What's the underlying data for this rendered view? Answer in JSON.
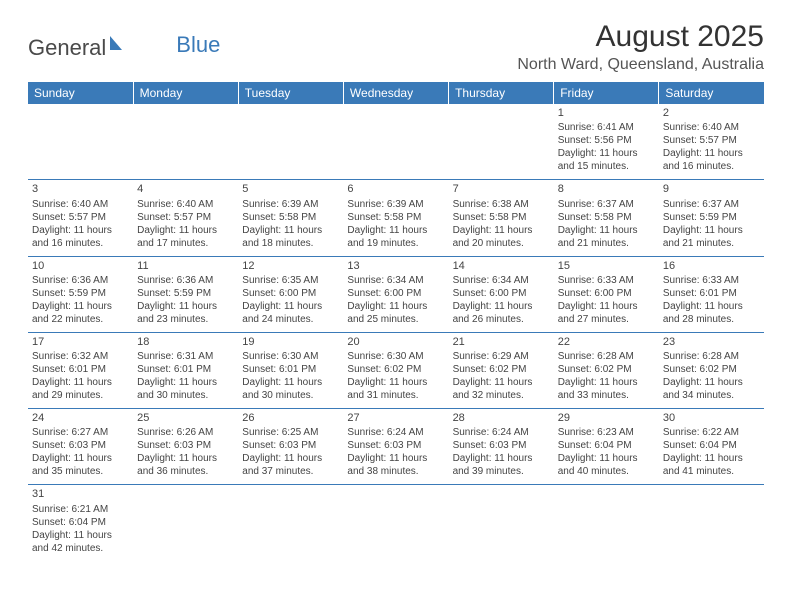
{
  "logo": {
    "text1": "General",
    "text2": "Blue"
  },
  "title": "August 2025",
  "location": "North Ward, Queensland, Australia",
  "colors": {
    "header_bg": "#3a7ab8",
    "header_text": "#ffffff",
    "border": "#3a7ab8",
    "text": "#444444",
    "background": "#ffffff"
  },
  "day_headers": [
    "Sunday",
    "Monday",
    "Tuesday",
    "Wednesday",
    "Thursday",
    "Friday",
    "Saturday"
  ],
  "weeks": [
    [
      null,
      null,
      null,
      null,
      null,
      {
        "num": "1",
        "sunrise": "Sunrise: 6:41 AM",
        "sunset": "Sunset: 5:56 PM",
        "daylight": "Daylight: 11 hours and 15 minutes."
      },
      {
        "num": "2",
        "sunrise": "Sunrise: 6:40 AM",
        "sunset": "Sunset: 5:57 PM",
        "daylight": "Daylight: 11 hours and 16 minutes."
      }
    ],
    [
      {
        "num": "3",
        "sunrise": "Sunrise: 6:40 AM",
        "sunset": "Sunset: 5:57 PM",
        "daylight": "Daylight: 11 hours and 16 minutes."
      },
      {
        "num": "4",
        "sunrise": "Sunrise: 6:40 AM",
        "sunset": "Sunset: 5:57 PM",
        "daylight": "Daylight: 11 hours and 17 minutes."
      },
      {
        "num": "5",
        "sunrise": "Sunrise: 6:39 AM",
        "sunset": "Sunset: 5:58 PM",
        "daylight": "Daylight: 11 hours and 18 minutes."
      },
      {
        "num": "6",
        "sunrise": "Sunrise: 6:39 AM",
        "sunset": "Sunset: 5:58 PM",
        "daylight": "Daylight: 11 hours and 19 minutes."
      },
      {
        "num": "7",
        "sunrise": "Sunrise: 6:38 AM",
        "sunset": "Sunset: 5:58 PM",
        "daylight": "Daylight: 11 hours and 20 minutes."
      },
      {
        "num": "8",
        "sunrise": "Sunrise: 6:37 AM",
        "sunset": "Sunset: 5:58 PM",
        "daylight": "Daylight: 11 hours and 21 minutes."
      },
      {
        "num": "9",
        "sunrise": "Sunrise: 6:37 AM",
        "sunset": "Sunset: 5:59 PM",
        "daylight": "Daylight: 11 hours and 21 minutes."
      }
    ],
    [
      {
        "num": "10",
        "sunrise": "Sunrise: 6:36 AM",
        "sunset": "Sunset: 5:59 PM",
        "daylight": "Daylight: 11 hours and 22 minutes."
      },
      {
        "num": "11",
        "sunrise": "Sunrise: 6:36 AM",
        "sunset": "Sunset: 5:59 PM",
        "daylight": "Daylight: 11 hours and 23 minutes."
      },
      {
        "num": "12",
        "sunrise": "Sunrise: 6:35 AM",
        "sunset": "Sunset: 6:00 PM",
        "daylight": "Daylight: 11 hours and 24 minutes."
      },
      {
        "num": "13",
        "sunrise": "Sunrise: 6:34 AM",
        "sunset": "Sunset: 6:00 PM",
        "daylight": "Daylight: 11 hours and 25 minutes."
      },
      {
        "num": "14",
        "sunrise": "Sunrise: 6:34 AM",
        "sunset": "Sunset: 6:00 PM",
        "daylight": "Daylight: 11 hours and 26 minutes."
      },
      {
        "num": "15",
        "sunrise": "Sunrise: 6:33 AM",
        "sunset": "Sunset: 6:00 PM",
        "daylight": "Daylight: 11 hours and 27 minutes."
      },
      {
        "num": "16",
        "sunrise": "Sunrise: 6:33 AM",
        "sunset": "Sunset: 6:01 PM",
        "daylight": "Daylight: 11 hours and 28 minutes."
      }
    ],
    [
      {
        "num": "17",
        "sunrise": "Sunrise: 6:32 AM",
        "sunset": "Sunset: 6:01 PM",
        "daylight": "Daylight: 11 hours and 29 minutes."
      },
      {
        "num": "18",
        "sunrise": "Sunrise: 6:31 AM",
        "sunset": "Sunset: 6:01 PM",
        "daylight": "Daylight: 11 hours and 30 minutes."
      },
      {
        "num": "19",
        "sunrise": "Sunrise: 6:30 AM",
        "sunset": "Sunset: 6:01 PM",
        "daylight": "Daylight: 11 hours and 30 minutes."
      },
      {
        "num": "20",
        "sunrise": "Sunrise: 6:30 AM",
        "sunset": "Sunset: 6:02 PM",
        "daylight": "Daylight: 11 hours and 31 minutes."
      },
      {
        "num": "21",
        "sunrise": "Sunrise: 6:29 AM",
        "sunset": "Sunset: 6:02 PM",
        "daylight": "Daylight: 11 hours and 32 minutes."
      },
      {
        "num": "22",
        "sunrise": "Sunrise: 6:28 AM",
        "sunset": "Sunset: 6:02 PM",
        "daylight": "Daylight: 11 hours and 33 minutes."
      },
      {
        "num": "23",
        "sunrise": "Sunrise: 6:28 AM",
        "sunset": "Sunset: 6:02 PM",
        "daylight": "Daylight: 11 hours and 34 minutes."
      }
    ],
    [
      {
        "num": "24",
        "sunrise": "Sunrise: 6:27 AM",
        "sunset": "Sunset: 6:03 PM",
        "daylight": "Daylight: 11 hours and 35 minutes."
      },
      {
        "num": "25",
        "sunrise": "Sunrise: 6:26 AM",
        "sunset": "Sunset: 6:03 PM",
        "daylight": "Daylight: 11 hours and 36 minutes."
      },
      {
        "num": "26",
        "sunrise": "Sunrise: 6:25 AM",
        "sunset": "Sunset: 6:03 PM",
        "daylight": "Daylight: 11 hours and 37 minutes."
      },
      {
        "num": "27",
        "sunrise": "Sunrise: 6:24 AM",
        "sunset": "Sunset: 6:03 PM",
        "daylight": "Daylight: 11 hours and 38 minutes."
      },
      {
        "num": "28",
        "sunrise": "Sunrise: 6:24 AM",
        "sunset": "Sunset: 6:03 PM",
        "daylight": "Daylight: 11 hours and 39 minutes."
      },
      {
        "num": "29",
        "sunrise": "Sunrise: 6:23 AM",
        "sunset": "Sunset: 6:04 PM",
        "daylight": "Daylight: 11 hours and 40 minutes."
      },
      {
        "num": "30",
        "sunrise": "Sunrise: 6:22 AM",
        "sunset": "Sunset: 6:04 PM",
        "daylight": "Daylight: 11 hours and 41 minutes."
      }
    ],
    [
      {
        "num": "31",
        "sunrise": "Sunrise: 6:21 AM",
        "sunset": "Sunset: 6:04 PM",
        "daylight": "Daylight: 11 hours and 42 minutes."
      },
      null,
      null,
      null,
      null,
      null,
      null
    ]
  ]
}
